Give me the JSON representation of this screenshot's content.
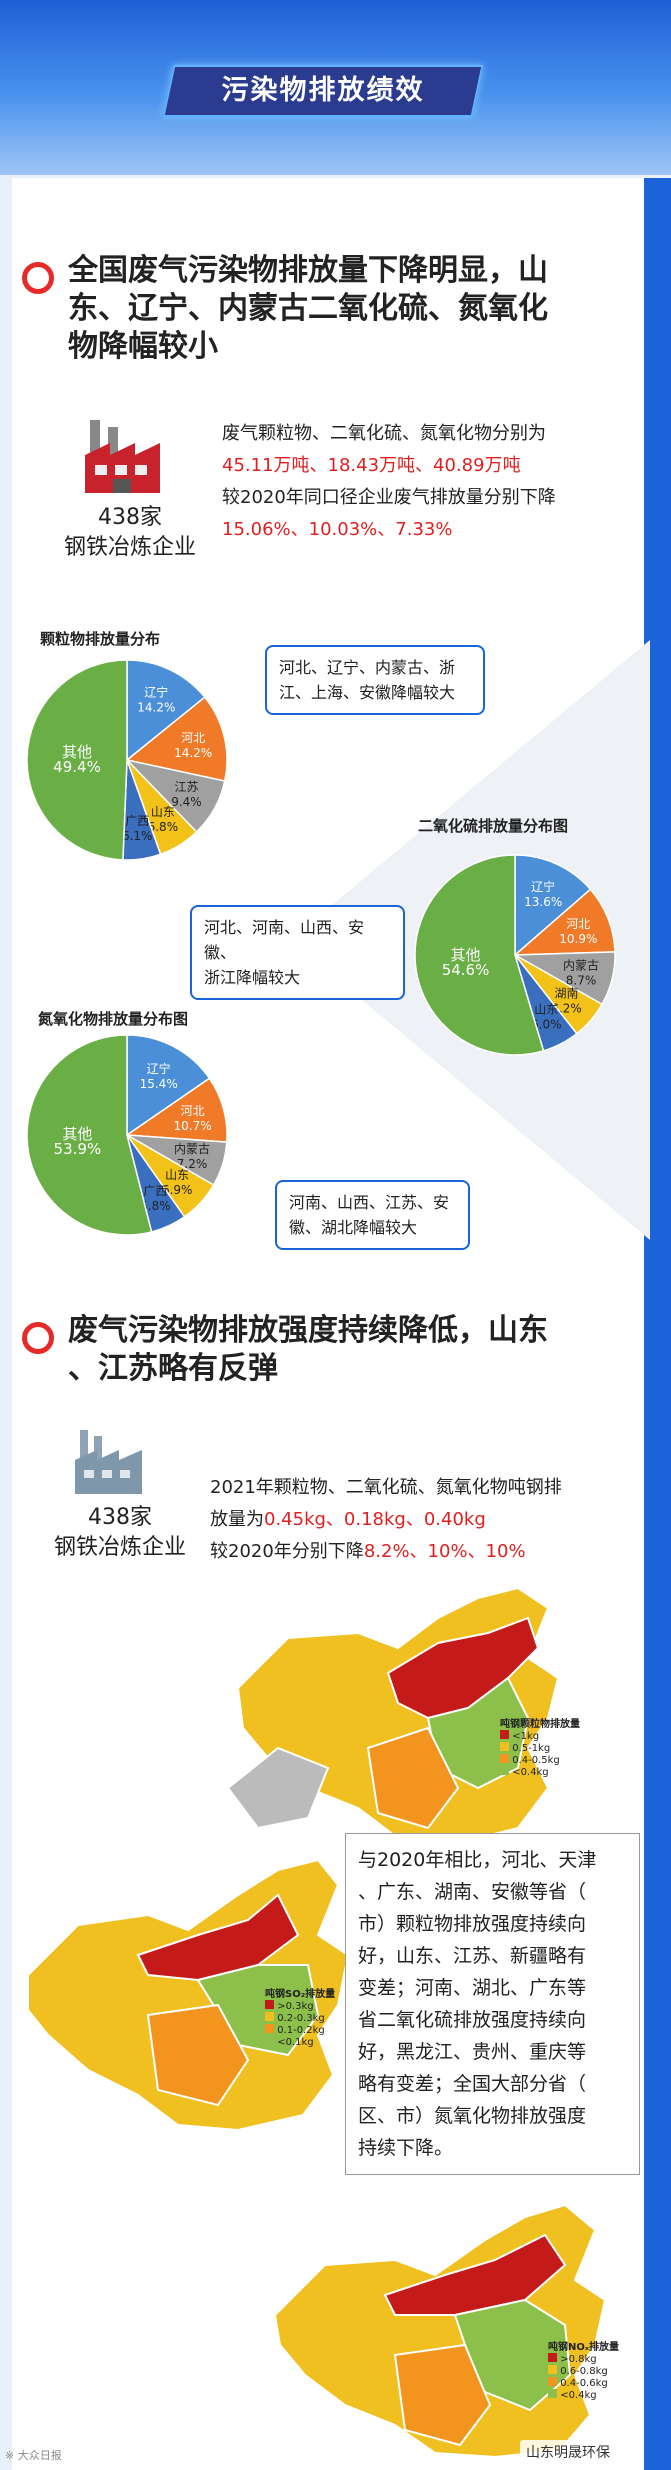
{
  "header": {
    "banner": "污染物排放绩效"
  },
  "section1": {
    "title": "全国废气污染物排放量下降明显，山东、辽宁、内蒙古二氧化硫、氮氧化物降幅较小",
    "title_lines": [
      "全国废气污染物排放量下降明显，山",
      "东、辽宁、内蒙古二氧化硫、氮氧化",
      "物降幅较小"
    ],
    "count": "438家",
    "enterprise": "钢铁冶炼企业",
    "line1": "废气颗粒物、二氧化硫、氮氧化物分别为",
    "line1_values": "45.11万吨、18.43万吨、40.89万吨",
    "line2": "较2020年同口径企业废气排放量分别下降",
    "line2_values": "15.06%、10.03%、7.33%"
  },
  "charts": {
    "pm": {
      "title": "颗粒物排放量分布",
      "callout": [
        "河北、辽宁、内蒙古、浙",
        "江、上海、安徽降幅较大"
      ]
    },
    "so2": {
      "title": "二氧化硫排放量分布图",
      "callout": [
        "河北、河南、山西、安徽、",
        "浙江降幅较大"
      ]
    },
    "nox": {
      "title": "氮氧化物排放量分布图",
      "callout": [
        "河南、山西、江苏、安",
        "徽、湖北降幅较大"
      ]
    }
  },
  "chart_data": [
    {
      "type": "pie",
      "title": "颗粒物排放量分布",
      "labels": [
        "辽宁",
        "河北",
        "江苏",
        "山东",
        "广西",
        "其他"
      ],
      "values": [
        14.2,
        14.2,
        9.4,
        6.8,
        6.1,
        49.4
      ],
      "colors": [
        "#4a8fd8",
        "#f07a28",
        "#a0a0a0",
        "#f2c218",
        "#3a6fc0",
        "#6aae46"
      ]
    },
    {
      "type": "pie",
      "title": "二氧化硫排放量分布图",
      "labels": [
        "辽宁",
        "河北",
        "内蒙古",
        "湖南",
        "山东",
        "其他"
      ],
      "values": [
        13.6,
        10.9,
        8.7,
        6.2,
        6.0,
        54.6
      ],
      "colors": [
        "#4a8fd8",
        "#f07a28",
        "#a0a0a0",
        "#f2c218",
        "#3a6fc0",
        "#6aae46"
      ]
    },
    {
      "type": "pie",
      "title": "氮氧化物排放量分布图",
      "labels": [
        "辽宁",
        "河北",
        "内蒙古",
        "山东",
        "广西",
        "其他"
      ],
      "values": [
        15.4,
        10.7,
        7.2,
        6.9,
        5.8,
        53.9
      ],
      "colors": [
        "#4a8fd8",
        "#f07a28",
        "#a0a0a0",
        "#f2c218",
        "#3a6fc0",
        "#6aae46"
      ]
    }
  ],
  "section2": {
    "title_lines": [
      "废气污染物排放强度持续降低，山东",
      "、江苏略有反弹"
    ],
    "count": "438家",
    "enterprise": "钢铁冶炼企业",
    "line1": "2021年颗粒物、二氧化硫、氮氧化物吨钢排",
    "line2_prefix": "放量为",
    "line2_values": "0.45kg、0.18kg、0.40kg",
    "line3_prefix": "较2020年分别下降",
    "line3_values": "8.2%、10%、10%"
  },
  "maps": [
    {
      "legend_title": "吨钢颗粒物排放量",
      "legend": [
        "<1kg",
        "0.5-1kg",
        "0.4-0.5kg",
        "<0.4kg"
      ]
    },
    {
      "legend_title": "吨钢SO₂排放量",
      "legend": [
        ">0.3kg",
        "0.2-0.3kg",
        "0.1-0.2kg",
        "<0.1kg"
      ]
    },
    {
      "legend_title": "吨钢NOₓ排放量",
      "legend": [
        ">0.8kg",
        "0.6-0.8kg",
        "0.4-0.6kg",
        "<0.4kg"
      ]
    }
  ],
  "map_colors": [
    "#c41a1a",
    "#f0c020",
    "#f2941e",
    "#8cc04a"
  ],
  "infobox": [
    "与2020年相比，河北、天津",
    "、广东、湖南、安徽等省（",
    "市）颗粒物排放强度持续向",
    "好，山东、江苏、新疆略有",
    "变差；河南、湖北、广东等",
    "省二氧化硫排放强度持续向",
    "好，黑龙江、贵州、重庆等",
    "略有变差；全国大部分省（",
    "区、市）氮氧化物排放强度",
    "持续下降。"
  ],
  "footer": {
    "left": "※ 大众日报",
    "right": "山东明晟环保"
  }
}
